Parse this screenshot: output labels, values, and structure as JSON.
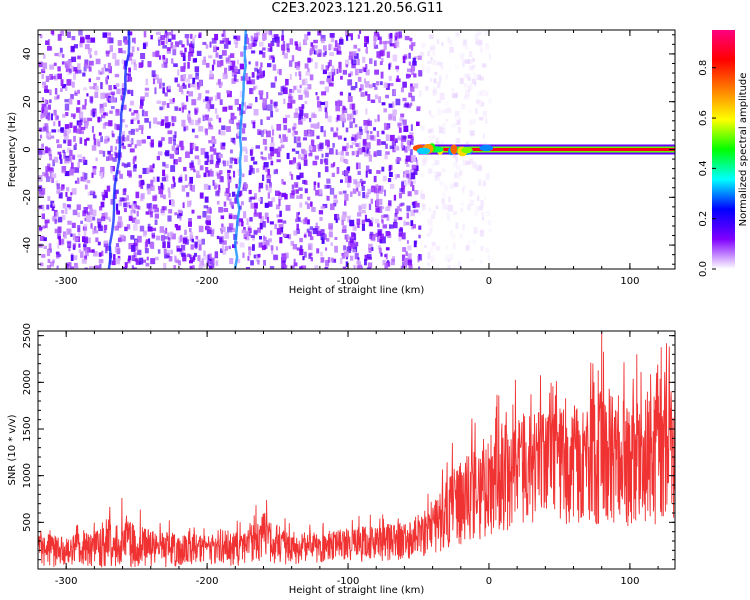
{
  "title": "C2E3.2023.121.20.56.G11",
  "colors": {
    "snr_line": "#f03232",
    "axes": "#000000"
  },
  "chart_data": [
    {
      "type": "heatmap",
      "xlabel": "Height of straight line (km)",
      "ylabel": "Frequency (Hz)",
      "xlim": [
        -320,
        132
      ],
      "ylim": [
        -50,
        50
      ],
      "x_ticks": [
        -300,
        -200,
        -100,
        0,
        100
      ],
      "x_tick_labels": [
        "-300",
        "-200",
        "-100",
        "0",
        "100"
      ],
      "y_ticks": [
        -40,
        -20,
        0,
        20,
        40
      ],
      "y_tick_labels": [
        "-40",
        "-20",
        "0",
        "20",
        "40"
      ],
      "colorbar": {
        "label": "Normalized spectral amplitude",
        "range": [
          0,
          0.95
        ],
        "ticks": [
          0.0,
          0.2,
          0.4,
          0.6,
          0.8
        ],
        "tick_labels": [
          "0.0",
          "0.2",
          "0.4",
          "0.6",
          "0.8"
        ],
        "colormap": [
          "#ffffff",
          "#8000ff",
          "#0000ff",
          "#00ffff",
          "#00ff00",
          "#ffff00",
          "#ff8000",
          "#ff0000",
          "#ff0080"
        ]
      },
      "regions": [
        {
          "x_range": [
            -320,
            -50
          ],
          "f_range": [
            -50,
            50
          ],
          "amplitude": 0.1,
          "description_level": "noise"
        },
        {
          "x_range": [
            -50,
            0
          ],
          "f_range": [
            -50,
            50
          ],
          "amplitude": 0.03,
          "description_level": "faint"
        },
        {
          "x_range": [
            -50,
            132
          ],
          "f_range": [
            -1,
            1
          ],
          "amplitude": 0.85,
          "description_level": "carrier"
        }
      ],
      "streaks": [
        {
          "x": [
            -270,
            -255
          ],
          "f": [
            -50,
            50
          ],
          "amplitude": 0.25
        },
        {
          "x": [
            -180,
            -172
          ],
          "f": [
            -50,
            50
          ],
          "amplitude": 0.3
        }
      ]
    },
    {
      "type": "line",
      "xlabel": "Height of straight line (km)",
      "ylabel": "SNR (10 * v/v)",
      "xlim": [
        -320,
        132
      ],
      "ylim": [
        0,
        2550
      ],
      "x_ticks": [
        -300,
        -200,
        -100,
        0,
        100
      ],
      "x_tick_labels": [
        "-300",
        "-200",
        "-100",
        "0",
        "100"
      ],
      "y_ticks": [
        500,
        1000,
        1500,
        2000,
        2500
      ],
      "y_tick_labels": [
        "500",
        "1000",
        "1500",
        "2000",
        "2500"
      ],
      "series": [
        {
          "x": [
            -320,
            -300,
            -280,
            -260,
            -240,
            -220,
            -200,
            -180,
            -165,
            -160,
            -150,
            -140,
            -120,
            -100,
            -80,
            -60,
            -40,
            -30,
            -20,
            -10,
            0,
            10,
            20,
            30,
            40,
            60,
            80,
            100,
            120,
            132
          ],
          "mean": [
            230,
            220,
            230,
            250,
            230,
            230,
            230,
            240,
            320,
            420,
            300,
            260,
            260,
            300,
            320,
            360,
            470,
            600,
            750,
            850,
            950,
            1050,
            1100,
            1200,
            1250,
            1220,
            1250,
            1270,
            1300,
            1320
          ],
          "peak": [
            500,
            480,
            550,
            780,
            560,
            520,
            470,
            520,
            720,
            850,
            620,
            520,
            500,
            560,
            600,
            620,
            900,
            1300,
            1500,
            1650,
            1900,
            2000,
            2050,
            2150,
            2050,
            2200,
            2550,
            2300,
            2500,
            2550
          ],
          "low": [
            20,
            20,
            20,
            20,
            20,
            20,
            20,
            30,
            60,
            100,
            40,
            50,
            60,
            70,
            80,
            100,
            150,
            200,
            250,
            300,
            350,
            400,
            450,
            450,
            500,
            450,
            480,
            450,
            450,
            480
          ]
        }
      ]
    }
  ]
}
